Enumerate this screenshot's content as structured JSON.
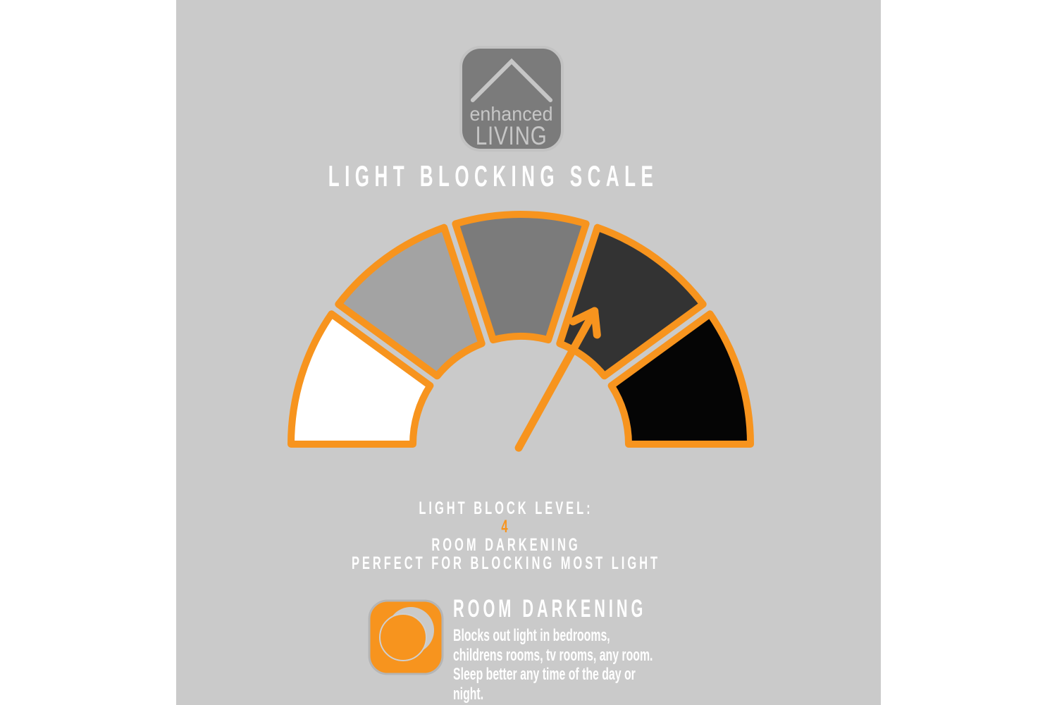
{
  "canvas": {
    "page_background": "#ffffff",
    "background": "#cacaca",
    "accent_orange": "#f7941e"
  },
  "logo": {
    "line1": "enhanced",
    "line2": "LIVING",
    "icon": "roof-icon",
    "background": "#7b7b7b",
    "text_color": "#c6c6c6"
  },
  "title": "LIGHT BLOCKING SCALE",
  "gauge": {
    "type": "gauge",
    "outline_color": "#f7941e",
    "pointer_color": "#f7941e",
    "segments": [
      {
        "level": 1,
        "color": "#ffffff"
      },
      {
        "level": 2,
        "color": "#a3a3a3"
      },
      {
        "level": 3,
        "color": "#7b7b7b"
      },
      {
        "level": 4,
        "color": "#333333"
      },
      {
        "level": 5,
        "color": "#050505"
      }
    ],
    "pointer_level": 4,
    "pointer_angle_deg": 61
  },
  "level_info": {
    "label": "LIGHT BLOCK LEVEL:",
    "value": "4",
    "value_color": "#f7941e",
    "name": "ROOM DARKENING",
    "tagline": "PERFECT FOR BLOCKING MOST LIGHT"
  },
  "feature": {
    "icon": "moon-icon",
    "heading": "ROOM DARKENING",
    "description_lines": [
      "Blocks out light in bedrooms,",
      "childrens rooms, tv rooms, any room.",
      "Sleep better any time of the day or",
      "night."
    ]
  }
}
